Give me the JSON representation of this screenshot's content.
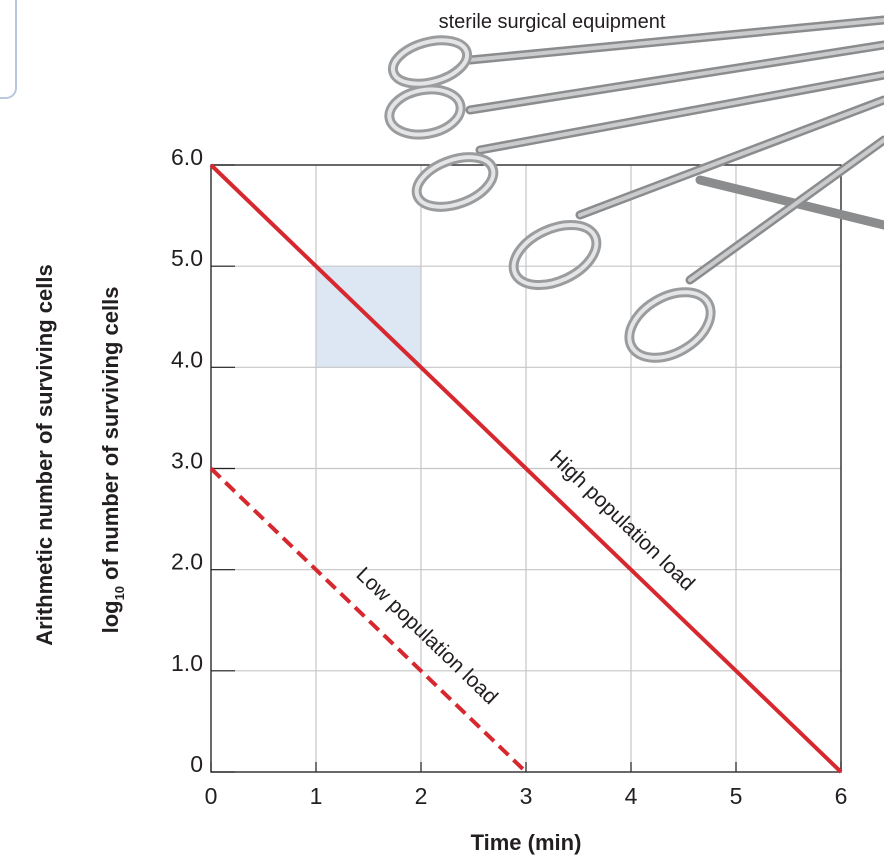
{
  "chart_data": {
    "type": "line",
    "annotation": "sterile surgical equipment",
    "ylabel_outer": "Arithmetic number of surviving cells",
    "ylabel_inner": [
      "log",
      "10",
      "of number of surviving cells"
    ],
    "xlabel": "Time (min)",
    "xlim": [
      0,
      6
    ],
    "xticks": [
      0,
      1,
      2,
      3,
      4,
      5,
      6
    ],
    "ylim": [
      0,
      6
    ],
    "yticks": [
      0,
      {
        "value": 1,
        "label": "1.0"
      },
      {
        "value": 2,
        "label": "2.0"
      },
      {
        "value": 3,
        "label": "3.0"
      },
      {
        "value": 4,
        "label": "4.0"
      },
      {
        "value": 5,
        "label": "5.0"
      },
      {
        "value": 6,
        "label": "6.0"
      }
    ],
    "grid": true,
    "highlight": {
      "xlim": [
        1,
        2
      ],
      "ylim": [
        4,
        5
      ],
      "color": "#dde6f3"
    },
    "series": [
      {
        "name": "High population load",
        "color": "#d7282f",
        "style": "solid",
        "x": [
          0,
          1,
          2,
          3,
          4,
          5,
          6
        ],
        "values": [
          6,
          5,
          4,
          3,
          2,
          1,
          0
        ]
      },
      {
        "name": "Low population load",
        "color": "#d7282f",
        "style": "dashed",
        "x": [
          0,
          1,
          2,
          3
        ],
        "values": [
          3,
          2,
          1,
          0
        ]
      }
    ]
  }
}
